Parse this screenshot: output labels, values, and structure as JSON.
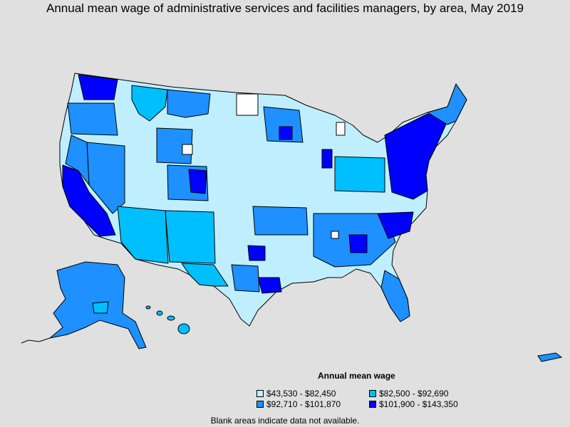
{
  "title": "Annual mean wage of administrative services and facilities managers, by area, May 2019",
  "legend": {
    "title": "Annual mean wage",
    "items": [
      {
        "label": "$43,530 - $82,450",
        "color": "#bfefff"
      },
      {
        "label": "$82,500 - $92,690",
        "color": "#00bfff"
      },
      {
        "label": "$92,710 - $101,870",
        "color": "#1e90ff"
      },
      {
        "label": "$101,900 - $143,350",
        "color": "#0000ff"
      }
    ]
  },
  "footnote": "Blank areas indicate data not available.",
  "colors": {
    "background": "#e0e0e0",
    "no_data": "#ffffff",
    "border": "#000000"
  }
}
